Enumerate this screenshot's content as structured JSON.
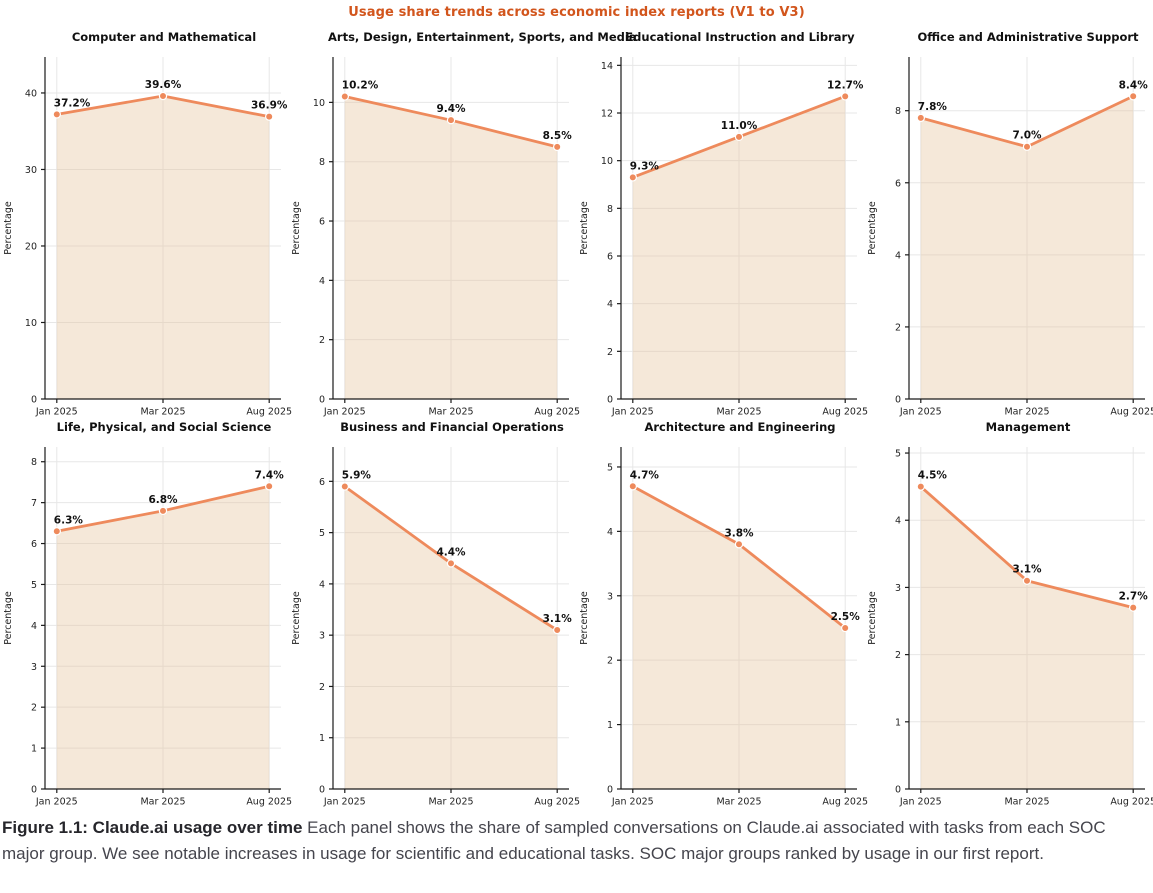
{
  "figure_title": "Usage share trends across economic index reports (V1 to V3)",
  "axis": {
    "x_categories": [
      "Jan 2025",
      "Mar 2025",
      "Aug 2025"
    ],
    "ylabel": "Percentage"
  },
  "colors": {
    "figure_title": "#d2551c",
    "line": "#ee8a5c",
    "marker_fill": "#ee8a5c",
    "marker_edge": "#ffffff",
    "area_fill": "rgba(228,193,152,0.37)",
    "grid": "#e7e7e7",
    "axis_spine": "#1a1a1a",
    "tick_text": "#1f1f1f",
    "point_label_text": "#111111",
    "caption_bold": "#26262b",
    "caption_text": "#45454d"
  },
  "chart_data": [
    {
      "type": "line",
      "title": "Computer and Mathematical",
      "categories": [
        "Jan 2025",
        "Mar 2025",
        "Aug 2025"
      ],
      "values": [
        37.2,
        39.6,
        36.9
      ],
      "point_labels": [
        "37.2%",
        "39.6%",
        "36.9%"
      ],
      "ylabel": "Percentage",
      "yticks": [
        0,
        10,
        20,
        30,
        40
      ],
      "ylim": [
        0,
        44.7
      ],
      "grid": true,
      "legend": "none"
    },
    {
      "type": "line",
      "title": "Arts, Design, Entertainment, Sports, and Media",
      "categories": [
        "Jan 2025",
        "Mar 2025",
        "Aug 2025"
      ],
      "values": [
        10.2,
        9.4,
        8.5
      ],
      "point_labels": [
        "10.2%",
        "9.4%",
        "8.5%"
      ],
      "ylabel": "Percentage",
      "yticks": [
        0,
        2,
        4,
        6,
        8,
        10
      ],
      "ylim": [
        0,
        11.53
      ],
      "grid": true,
      "legend": "none"
    },
    {
      "type": "line",
      "title": "Educational Instruction and Library",
      "categories": [
        "Jan 2025",
        "Mar 2025",
        "Aug 2025"
      ],
      "values": [
        9.3,
        11.0,
        12.7
      ],
      "point_labels": [
        "9.3%",
        "11.0%",
        "12.7%"
      ],
      "ylabel": "Percentage",
      "yticks": [
        0,
        2,
        4,
        6,
        8,
        10,
        12,
        14
      ],
      "ylim": [
        0,
        14.35
      ],
      "grid": true,
      "legend": "none"
    },
    {
      "type": "line",
      "title": "Office and Administrative Support",
      "categories": [
        "Jan 2025",
        "Mar 2025",
        "Aug 2025"
      ],
      "values": [
        7.8,
        7.0,
        8.4
      ],
      "point_labels": [
        "7.8%",
        "7.0%",
        "8.4%"
      ],
      "ylabel": "Percentage",
      "yticks": [
        0,
        2,
        4,
        6,
        8
      ],
      "ylim": [
        0,
        9.49
      ],
      "grid": true,
      "legend": "none"
    },
    {
      "type": "line",
      "title": "Life, Physical, and Social Science",
      "categories": [
        "Jan 2025",
        "Mar 2025",
        "Aug 2025"
      ],
      "values": [
        6.3,
        6.8,
        7.4
      ],
      "point_labels": [
        "6.3%",
        "6.8%",
        "7.4%"
      ],
      "ylabel": "Percentage",
      "yticks": [
        0,
        1,
        2,
        3,
        4,
        5,
        6,
        7,
        8
      ],
      "ylim": [
        0,
        8.36
      ],
      "grid": true,
      "legend": "none"
    },
    {
      "type": "line",
      "title": "Business and Financial Operations",
      "categories": [
        "Jan 2025",
        "Mar 2025",
        "Aug 2025"
      ],
      "values": [
        5.9,
        4.4,
        3.1
      ],
      "point_labels": [
        "5.9%",
        "4.4%",
        "3.1%"
      ],
      "ylabel": "Percentage",
      "yticks": [
        0,
        1,
        2,
        3,
        4,
        5,
        6
      ],
      "ylim": [
        0,
        6.67
      ],
      "grid": true,
      "legend": "none"
    },
    {
      "type": "line",
      "title": "Architecture and Engineering",
      "categories": [
        "Jan 2025",
        "Mar 2025",
        "Aug 2025"
      ],
      "values": [
        4.7,
        3.8,
        2.5
      ],
      "point_labels": [
        "4.7%",
        "3.8%",
        "2.5%"
      ],
      "ylabel": "Percentage",
      "yticks": [
        0,
        1,
        2,
        3,
        4,
        5
      ],
      "ylim": [
        0,
        5.31
      ],
      "grid": true,
      "legend": "none"
    },
    {
      "type": "line",
      "title": "Management",
      "categories": [
        "Jan 2025",
        "Mar 2025",
        "Aug 2025"
      ],
      "values": [
        4.5,
        3.1,
        2.7
      ],
      "point_labels": [
        "4.5%",
        "3.1%",
        "2.7%"
      ],
      "ylabel": "Percentage",
      "yticks": [
        0,
        1,
        2,
        3,
        4,
        5
      ],
      "ylim": [
        0,
        5.09
      ],
      "grid": true,
      "legend": "none"
    }
  ],
  "caption": {
    "bold": "Figure 1.1: Claude.ai usage over time",
    "text": " Each panel shows the share of sampled conversations on Claude.ai associated with tasks from each SOC major group. We see notable increases in usage for scientific and educational tasks. SOC major groups ranked by usage in our first report."
  }
}
